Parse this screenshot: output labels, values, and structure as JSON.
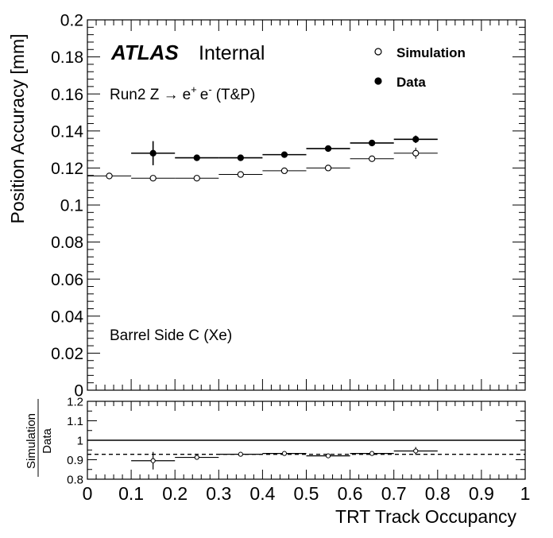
{
  "chart_data": [
    {
      "type": "scatter",
      "xlabel": "",
      "ylabel": "Position Accuracy [mm]",
      "xlim": [
        0,
        1
      ],
      "ylim": [
        0,
        0.2
      ],
      "x_ticks": [
        "0",
        "0.1",
        "0.2",
        "0.3",
        "0.4",
        "0.5",
        "0.6",
        "0.7",
        "0.8",
        "0.9",
        "1"
      ],
      "y_ticks": [
        "0",
        "0.02",
        "0.04",
        "0.06",
        "0.08",
        "0.1",
        "0.12",
        "0.14",
        "0.16",
        "0.18",
        "0.2"
      ],
      "annotations": {
        "experiment": "ATLAS",
        "status": "Internal",
        "process_prefix": "Run2 Z ",
        "arrow": "→",
        "electron": "e",
        "plus": "+",
        "minus": "-",
        "method": "(T&P)",
        "region": "Barrel Side C (Xe)"
      },
      "legend": {
        "position": "top-right",
        "entries": [
          "Simulation",
          "Data"
        ]
      },
      "series": [
        {
          "name": "Simulation",
          "marker": "open-circle",
          "bin_width": 0.1,
          "x": [
            0.05,
            0.15,
            0.25,
            0.35,
            0.45,
            0.55,
            0.65,
            0.75
          ],
          "y": [
            0.1157,
            0.1145,
            0.1145,
            0.1165,
            0.1185,
            0.12,
            0.125,
            0.128
          ],
          "yerr": [
            0.0005,
            0.0005,
            0.0005,
            0.0005,
            0.0005,
            0.0005,
            0.0007,
            0.003
          ]
        },
        {
          "name": "Data",
          "marker": "filled-circle",
          "bin_width": 0.1,
          "x": [
            0.15,
            0.25,
            0.35,
            0.45,
            0.55,
            0.65,
            0.75
          ],
          "y": [
            0.128,
            0.1255,
            0.1255,
            0.1272,
            0.1305,
            0.1335,
            0.1355
          ],
          "yerr": [
            0.0065,
            0.001,
            0.001,
            0.0012,
            0.0012,
            0.0012,
            0.002
          ]
        }
      ]
    },
    {
      "type": "scatter",
      "xlabel": "TRT Track Occupancy",
      "ylabel_numerator": "Simulation",
      "ylabel_denominator": "Data",
      "xlim": [
        0,
        1
      ],
      "ylim": [
        0.8,
        1.2
      ],
      "x_ticks": [
        "0",
        "0.1",
        "0.2",
        "0.3",
        "0.4",
        "0.5",
        "0.6",
        "0.7",
        "0.8",
        "0.9",
        "1"
      ],
      "y_ticks": [
        "0.8",
        "0.9",
        "1",
        "1.1",
        "1.2"
      ],
      "reference_line": 1.0,
      "mean_line": 0.928,
      "series": [
        {
          "name": "",
          "marker": "open-circle",
          "bin_width": 0.1,
          "x": [
            0.15,
            0.25,
            0.35,
            0.45,
            0.55,
            0.65,
            0.75
          ],
          "y": [
            0.895,
            0.912,
            0.928,
            0.932,
            0.92,
            0.932,
            0.945
          ],
          "yerr": [
            0.045,
            0.008,
            0.008,
            0.008,
            0.008,
            0.008,
            0.02
          ]
        }
      ]
    }
  ]
}
